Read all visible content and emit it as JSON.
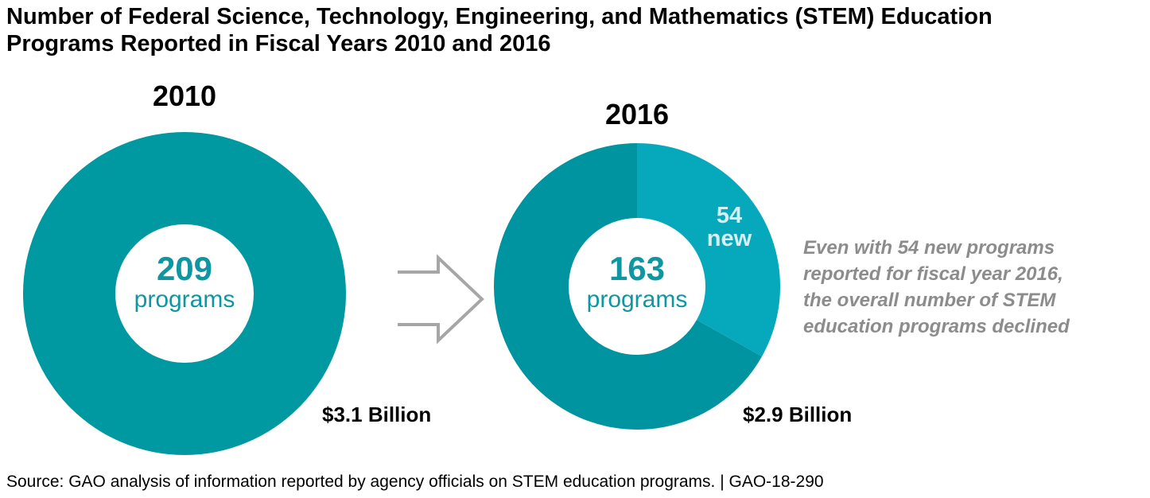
{
  "title": {
    "line1": "Number of Federal Science, Technology, Engineering, and Mathematics (STEM) Education",
    "line2": "Programs Reported in Fiscal Years 2010 and 2016"
  },
  "colors": {
    "ring_main": "#0098A1",
    "ring_2016_existing": "#0094A0",
    "ring_new": "#05A9BB",
    "new_label": "#D8EEF2",
    "center_text": "#0E97A2",
    "annotation": "#8C8C8C",
    "arrow": "#A6A6A6"
  },
  "chart_data": [
    {
      "type": "pie",
      "year_label": "2010",
      "center_value": "209",
      "center_unit": "programs",
      "funding_label": "$3.1 Billion",
      "slices": [
        {
          "value": 209
        }
      ]
    },
    {
      "type": "pie",
      "year_label": "2016",
      "center_value": "163",
      "center_unit": "programs",
      "funding_label": "$2.9 Billion",
      "slices": [
        {
          "value": 109
        },
        {
          "value": 54,
          "label_line1": "54",
          "label_line2": "new"
        }
      ]
    }
  ],
  "annotation": {
    "lines": [
      "Even with 54 new programs",
      "reported for fiscal year 2016,",
      "the overall number of STEM",
      "education programs declined"
    ]
  },
  "source": "Source: GAO analysis of information reported by agency officials on STEM education programs.  |  GAO-18-290"
}
